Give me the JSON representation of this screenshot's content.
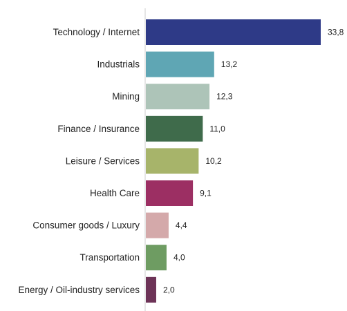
{
  "chart_data": {
    "type": "bar",
    "orientation": "horizontal",
    "categories": [
      "Technology / Internet",
      "Industrials",
      "Mining",
      "Finance / Insurance",
      "Leisure / Services",
      "Health Care",
      "Consumer goods / Luxury",
      "Transportation",
      "Energy / Oil-industry services"
    ],
    "values": [
      33.8,
      13.2,
      12.3,
      11.0,
      10.2,
      9.1,
      4.4,
      4.0,
      2.0
    ],
    "value_labels": [
      "33,8",
      "13,2",
      "12,3",
      "11,0",
      "10,2",
      "9,1",
      "4,4",
      "4,0",
      "2,0"
    ],
    "colors": [
      "#2e3a87",
      "#5fa6b4",
      "#adc4b8",
      "#3f6b4b",
      "#a7b46a",
      "#9c2f63",
      "#d4a9aa",
      "#6e9c62",
      "#6d3357"
    ],
    "axis_color": "#cccccc",
    "xlim": [
      0,
      33.8
    ],
    "grid": false,
    "legend": "none",
    "title": "",
    "xlabel": "",
    "ylabel": ""
  }
}
